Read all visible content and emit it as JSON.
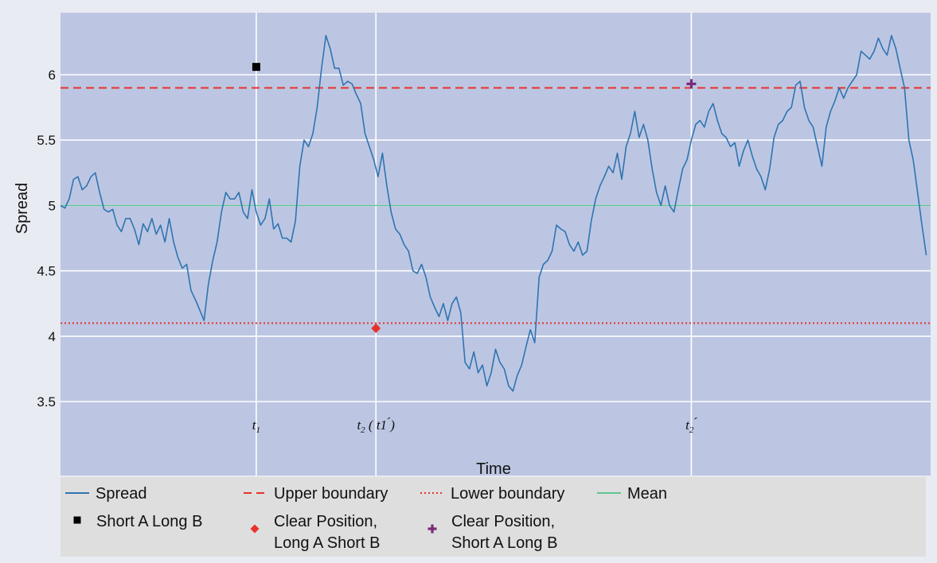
{
  "chart_data": {
    "type": "line",
    "xlabel": "Time",
    "ylabel": "Spread",
    "ylim": [
      3.0,
      6.5
    ],
    "xlim": [
      0,
      200
    ],
    "y_ticks": [
      "3.5",
      "4",
      "4.5",
      "5",
      "5.5",
      "6"
    ],
    "y_tick_values": [
      3.5,
      4.0,
      4.5,
      5.0,
      5.5,
      6.0
    ],
    "x_ticks": [
      {
        "x": 45,
        "main": "t",
        "sub": "1",
        "extra": ""
      },
      {
        "x": 72.5,
        "main": "t",
        "sub": "2",
        "extra": "( t1 ́)"
      },
      {
        "x": 145,
        "main": "t",
        "sub": "2",
        "extra": "́"
      }
    ],
    "series": [
      {
        "name": "Spread",
        "color": "#2f74b1",
        "points": [
          [
            0,
            5.0
          ],
          [
            1,
            4.98
          ],
          [
            2,
            5.05
          ],
          [
            3,
            5.2
          ],
          [
            4,
            5.22
          ],
          [
            5,
            5.12
          ],
          [
            6,
            5.15
          ],
          [
            7,
            5.22
          ],
          [
            8,
            5.25
          ],
          [
            9,
            5.1
          ],
          [
            10,
            4.97
          ],
          [
            11,
            4.95
          ],
          [
            12,
            4.97
          ],
          [
            13,
            4.85
          ],
          [
            14,
            4.8
          ],
          [
            15,
            4.9
          ],
          [
            16,
            4.9
          ],
          [
            17,
            4.82
          ],
          [
            18,
            4.7
          ],
          [
            19,
            4.86
          ],
          [
            20,
            4.8
          ],
          [
            21,
            4.9
          ],
          [
            22,
            4.78
          ],
          [
            23,
            4.85
          ],
          [
            24,
            4.72
          ],
          [
            25,
            4.9
          ],
          [
            26,
            4.72
          ],
          [
            27,
            4.6
          ],
          [
            28,
            4.52
          ],
          [
            29,
            4.55
          ],
          [
            30,
            4.35
          ],
          [
            31,
            4.28
          ],
          [
            32,
            4.2
          ],
          [
            33,
            4.12
          ],
          [
            34,
            4.4
          ],
          [
            35,
            4.58
          ],
          [
            36,
            4.72
          ],
          [
            37,
            4.95
          ],
          [
            38,
            5.1
          ],
          [
            39,
            5.05
          ],
          [
            40,
            5.05
          ],
          [
            41,
            5.1
          ],
          [
            42,
            4.95
          ],
          [
            43,
            4.9
          ],
          [
            44,
            5.12
          ],
          [
            45,
            4.95
          ],
          [
            46,
            4.85
          ],
          [
            47,
            4.9
          ],
          [
            48,
            5.05
          ],
          [
            49,
            4.82
          ],
          [
            50,
            4.86
          ],
          [
            51,
            4.75
          ],
          [
            52,
            4.75
          ],
          [
            53,
            4.72
          ],
          [
            54,
            4.88
          ],
          [
            55,
            5.3
          ],
          [
            56,
            5.5
          ],
          [
            57,
            5.45
          ],
          [
            58,
            5.55
          ],
          [
            59,
            5.75
          ],
          [
            60,
            6.05
          ],
          [
            61,
            6.3
          ],
          [
            62,
            6.2
          ],
          [
            63,
            6.05
          ],
          [
            64,
            6.05
          ],
          [
            65,
            5.92
          ],
          [
            66,
            5.95
          ],
          [
            67,
            5.93
          ],
          [
            68,
            5.85
          ],
          [
            69,
            5.78
          ],
          [
            70,
            5.55
          ],
          [
            71,
            5.45
          ],
          [
            72,
            5.35
          ],
          [
            73,
            5.22
          ],
          [
            74,
            5.4
          ],
          [
            75,
            5.15
          ],
          [
            76,
            4.95
          ],
          [
            77,
            4.82
          ],
          [
            78,
            4.78
          ],
          [
            79,
            4.7
          ],
          [
            80,
            4.65
          ],
          [
            81,
            4.5
          ],
          [
            82,
            4.48
          ],
          [
            83,
            4.55
          ],
          [
            84,
            4.45
          ],
          [
            85,
            4.3
          ],
          [
            86,
            4.22
          ],
          [
            87,
            4.15
          ],
          [
            88,
            4.25
          ],
          [
            89,
            4.12
          ],
          [
            90,
            4.25
          ],
          [
            91,
            4.3
          ],
          [
            92,
            4.18
          ],
          [
            93,
            3.8
          ],
          [
            94,
            3.75
          ],
          [
            95,
            3.88
          ],
          [
            96,
            3.72
          ],
          [
            97,
            3.78
          ],
          [
            98,
            3.62
          ],
          [
            99,
            3.72
          ],
          [
            100,
            3.9
          ],
          [
            101,
            3.8
          ],
          [
            102,
            3.75
          ],
          [
            103,
            3.62
          ],
          [
            104,
            3.58
          ],
          [
            105,
            3.7
          ],
          [
            106,
            3.78
          ],
          [
            107,
            3.92
          ],
          [
            108,
            4.05
          ],
          [
            109,
            3.95
          ],
          [
            110,
            4.45
          ],
          [
            111,
            4.55
          ],
          [
            112,
            4.58
          ],
          [
            113,
            4.65
          ],
          [
            114,
            4.85
          ],
          [
            115,
            4.82
          ],
          [
            116,
            4.8
          ],
          [
            117,
            4.7
          ],
          [
            118,
            4.65
          ],
          [
            119,
            4.72
          ],
          [
            120,
            4.62
          ],
          [
            121,
            4.65
          ],
          [
            122,
            4.88
          ],
          [
            123,
            5.05
          ],
          [
            124,
            5.15
          ],
          [
            125,
            5.22
          ],
          [
            126,
            5.3
          ],
          [
            127,
            5.25
          ],
          [
            128,
            5.4
          ],
          [
            129,
            5.2
          ],
          [
            130,
            5.45
          ],
          [
            131,
            5.55
          ],
          [
            132,
            5.72
          ],
          [
            133,
            5.52
          ],
          [
            134,
            5.62
          ],
          [
            135,
            5.5
          ],
          [
            136,
            5.28
          ],
          [
            137,
            5.1
          ],
          [
            138,
            5.0
          ],
          [
            139,
            5.15
          ],
          [
            140,
            5.0
          ],
          [
            141,
            4.95
          ],
          [
            142,
            5.12
          ],
          [
            143,
            5.28
          ],
          [
            144,
            5.35
          ],
          [
            145,
            5.5
          ],
          [
            146,
            5.62
          ],
          [
            147,
            5.65
          ],
          [
            148,
            5.6
          ],
          [
            149,
            5.72
          ],
          [
            150,
            5.78
          ],
          [
            151,
            5.65
          ],
          [
            152,
            5.55
          ],
          [
            153,
            5.52
          ],
          [
            154,
            5.45
          ],
          [
            155,
            5.48
          ],
          [
            156,
            5.3
          ],
          [
            157,
            5.42
          ],
          [
            158,
            5.5
          ],
          [
            159,
            5.38
          ],
          [
            160,
            5.28
          ],
          [
            161,
            5.22
          ],
          [
            162,
            5.12
          ],
          [
            163,
            5.28
          ],
          [
            164,
            5.52
          ],
          [
            165,
            5.62
          ],
          [
            166,
            5.65
          ],
          [
            167,
            5.72
          ],
          [
            168,
            5.75
          ],
          [
            169,
            5.92
          ],
          [
            170,
            5.95
          ],
          [
            171,
            5.75
          ],
          [
            172,
            5.65
          ],
          [
            173,
            5.6
          ],
          [
            174,
            5.45
          ],
          [
            175,
            5.3
          ],
          [
            176,
            5.6
          ],
          [
            177,
            5.72
          ],
          [
            178,
            5.8
          ],
          [
            179,
            5.9
          ],
          [
            180,
            5.82
          ],
          [
            181,
            5.9
          ],
          [
            182,
            5.95
          ],
          [
            183,
            6.0
          ],
          [
            184,
            6.18
          ],
          [
            185,
            6.15
          ],
          [
            186,
            6.12
          ],
          [
            187,
            6.18
          ],
          [
            188,
            6.28
          ],
          [
            189,
            6.2
          ],
          [
            190,
            6.15
          ],
          [
            191,
            6.3
          ],
          [
            192,
            6.2
          ],
          [
            193,
            6.05
          ],
          [
            194,
            5.9
          ],
          [
            195,
            5.5
          ],
          [
            196,
            5.35
          ],
          [
            197,
            5.1
          ],
          [
            198,
            4.85
          ],
          [
            199,
            4.62
          ]
        ]
      },
      {
        "name": "Upper boundary",
        "color": "#e8312c",
        "style": "dashed",
        "value": 5.9
      },
      {
        "name": "Lower boundary",
        "color": "#e8312c",
        "style": "dotted",
        "value": 4.1
      },
      {
        "name": "Mean",
        "color": "#5ec490",
        "style": "solid",
        "value": 5.0
      }
    ],
    "markers": [
      {
        "name": "Short A Long B",
        "shape": "square",
        "color": "#000000",
        "x": 45,
        "y": 6.06
      },
      {
        "name": "Clear Position, Long A Short B",
        "shape": "diamond",
        "color": "#e8312c",
        "x": 72.5,
        "y": 4.06
      },
      {
        "name": "Clear Position, Short A Long B",
        "shape": "plus",
        "color": "#7a2a7a",
        "x": 145,
        "y": 5.93
      }
    ],
    "legend": {
      "placement": "bottom",
      "row1": [
        "Spread",
        "Upper boundary",
        "Lower boundary",
        "Mean"
      ],
      "row2": [
        {
          "lines": [
            "Short A Long B"
          ]
        },
        {
          "lines": [
            "Clear Position,",
            "Long A Short B"
          ]
        },
        {
          "lines": [
            "Clear Position,",
            "Short A Long B"
          ]
        }
      ]
    },
    "colors": {
      "panel": "#bcc6e2",
      "grid": "#ffffff",
      "legend_bg": "#dedede"
    }
  }
}
